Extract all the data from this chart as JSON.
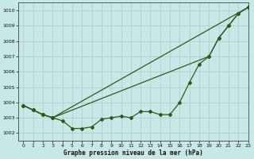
{
  "title": "Graphe pression niveau de la mer (hPa)",
  "bg_color": "#c8e8e8",
  "grid_color": "#b0d0d0",
  "line_color": "#2d5a1b",
  "xlim": [
    -0.5,
    23
  ],
  "ylim": [
    1001.5,
    1010.5
  ],
  "yticks": [
    1002,
    1003,
    1004,
    1005,
    1006,
    1007,
    1008,
    1009,
    1010
  ],
  "xticks": [
    0,
    1,
    2,
    3,
    4,
    5,
    6,
    7,
    8,
    9,
    10,
    11,
    12,
    13,
    14,
    15,
    16,
    17,
    18,
    19,
    20,
    21,
    22,
    23
  ],
  "line1_x": [
    0,
    1,
    2,
    3,
    4,
    5,
    6,
    7,
    8,
    9,
    10,
    11,
    12,
    13,
    14,
    15,
    16,
    17,
    18,
    19,
    20,
    21,
    22,
    23
  ],
  "line1_y": [
    1003.8,
    1003.5,
    1003.2,
    1003.0,
    1002.8,
    1002.3,
    1002.3,
    1002.4,
    1002.9,
    1003.0,
    1003.1,
    1003.0,
    1003.4,
    1003.4,
    1003.2,
    1003.2,
    1004.0,
    1005.3,
    1006.5,
    1007.0,
    1008.2,
    1009.0,
    1009.8,
    1010.2
  ],
  "line2_x": [
    0,
    1,
    2,
    3,
    23
  ],
  "line2_y": [
    1003.8,
    1003.5,
    1003.2,
    1003.0,
    1010.2
  ],
  "line3_x": [
    0,
    1,
    2,
    3,
    19,
    20,
    21,
    22,
    23
  ],
  "line3_y": [
    1003.8,
    1003.5,
    1003.2,
    1003.0,
    1007.0,
    1008.2,
    1009.0,
    1009.8,
    1010.2
  ],
  "marker_x2": [
    0,
    1,
    2,
    3,
    23
  ],
  "marker_y2": [
    1003.8,
    1003.5,
    1003.2,
    1003.0,
    1010.2
  ],
  "marker_x3": [
    0,
    1,
    2,
    3,
    19,
    20,
    21,
    22,
    23
  ],
  "marker_y3": [
    1003.8,
    1003.5,
    1003.2,
    1003.0,
    1007.0,
    1008.2,
    1009.0,
    1009.8,
    1010.2
  ]
}
